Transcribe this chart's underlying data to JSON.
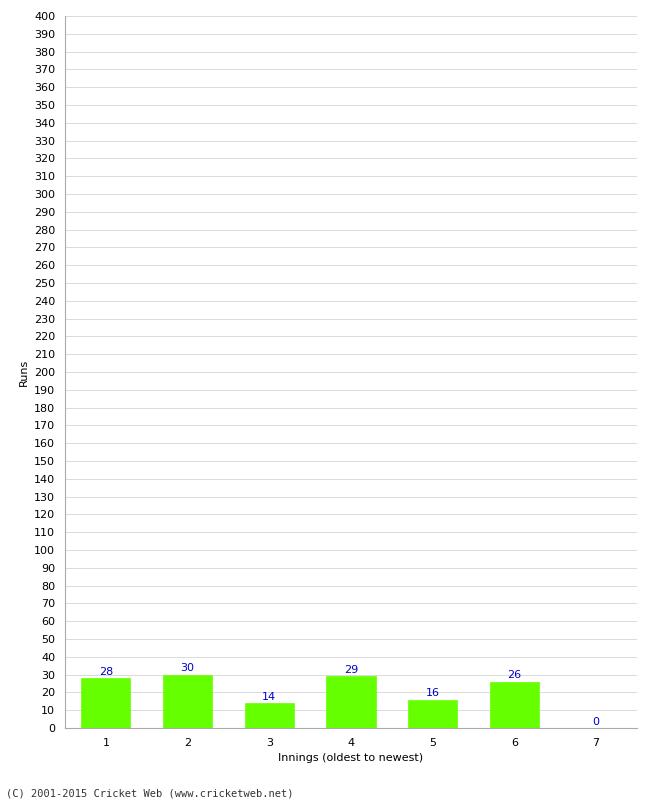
{
  "xlabel": "Innings (oldest to newest)",
  "ylabel": "Runs",
  "categories": [
    "1",
    "2",
    "3",
    "4",
    "5",
    "6",
    "7"
  ],
  "values": [
    28,
    30,
    14,
    29,
    16,
    26,
    0
  ],
  "bar_color": "#66ff00",
  "bar_edge_color": "#66ff00",
  "value_color": "#0000cc",
  "ylim": [
    0,
    400
  ],
  "ytick_step": 10,
  "background_color": "#ffffff",
  "grid_color": "#cccccc",
  "footer": "(C) 2001-2015 Cricket Web (www.cricketweb.net)",
  "tick_fontsize": 8,
  "label_fontsize": 8,
  "value_fontsize": 8
}
